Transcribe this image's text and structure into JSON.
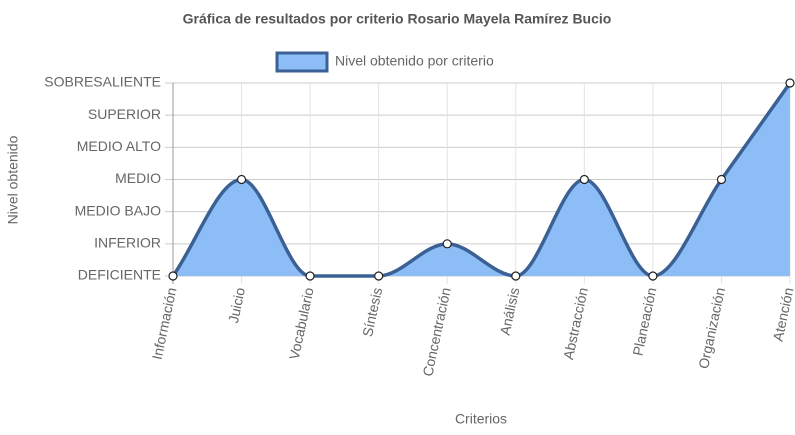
{
  "chart_data": {
    "type": "line",
    "title": "Gráfica de resultados por criterio Rosario Mayela Ramírez Bucio",
    "x_label": "Criterios",
    "y_label": "Nivel obtenido",
    "categories": [
      "Información",
      "Juicio",
      "Vocabulario",
      "Síntesis",
      "Concentración",
      "Análisis",
      "Abstracción",
      "Planeación",
      "Organización",
      "Atención"
    ],
    "series": [
      {
        "name": "Nivel obtenido por criterio",
        "color": "#3b6194",
        "fill_color": "#8dbdf6",
        "values": [
          0,
          3,
          0,
          0,
          1,
          0,
          3,
          0,
          3,
          6
        ]
      }
    ],
    "ylim": [
      0,
      6
    ],
    "yticks": [
      {
        "value": 0,
        "label": "DEFICIENTE"
      },
      {
        "value": 1,
        "label": "INFERIOR"
      },
      {
        "value": 2,
        "label": "MEDIO BAJO"
      },
      {
        "value": 3,
        "label": "MEDIO"
      },
      {
        "value": 4,
        "label": "MEDIO ALTO"
      },
      {
        "value": 5,
        "label": "SUPERIOR"
      },
      {
        "value": 6,
        "label": "SOBRESALIENTE"
      }
    ],
    "grid": true,
    "fill": true,
    "legend_position": "top"
  }
}
